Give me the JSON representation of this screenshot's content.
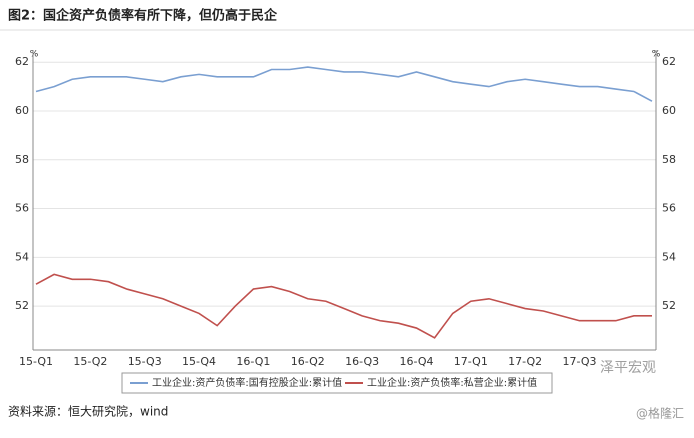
{
  "chart_data": {
    "type": "line",
    "title": "图2：国企资产负债率有所下降，但仍高于民企",
    "y_unit": "%",
    "y2_unit": "%",
    "categories": [
      "15-Q1",
      null,
      null,
      "15-Q2",
      null,
      null,
      "15-Q3",
      null,
      null,
      "15-Q4",
      null,
      null,
      "16-Q1",
      null,
      null,
      "16-Q2",
      null,
      null,
      "16-Q3",
      null,
      null,
      "16-Q4",
      null,
      null,
      "17-Q1",
      null,
      null,
      "17-Q2",
      null,
      null,
      "17-Q3",
      null,
      null,
      null,
      null
    ],
    "series": [
      {
        "name": "工业企业:资产负债率:国有控股企业:累计值",
        "color": "#7a9fd1",
        "values": [
          60.8,
          61.0,
          61.3,
          61.4,
          61.4,
          61.4,
          61.3,
          61.2,
          61.4,
          61.5,
          61.4,
          61.4,
          61.4,
          61.7,
          61.7,
          61.8,
          61.7,
          61.6,
          61.6,
          61.5,
          61.4,
          61.6,
          61.4,
          61.2,
          61.1,
          61.0,
          61.2,
          61.3,
          61.2,
          61.1,
          61.0,
          61.0,
          60.9,
          60.8,
          60.4
        ]
      },
      {
        "name": "工业企业:资产负债率:私营企业:累计值",
        "color": "#c0504d",
        "values": [
          52.9,
          53.3,
          53.1,
          53.1,
          53.0,
          52.7,
          52.5,
          52.3,
          52.0,
          51.7,
          51.2,
          52.0,
          52.7,
          52.8,
          52.6,
          52.3,
          52.2,
          51.9,
          51.6,
          51.4,
          51.3,
          51.1,
          50.7,
          51.7,
          52.2,
          52.3,
          52.1,
          51.9,
          51.8,
          51.6,
          51.4,
          51.4,
          51.4,
          51.6,
          51.6
        ]
      }
    ],
    "ylim": [
      50.2,
      62.5
    ],
    "yticks": [
      52,
      54,
      56,
      58,
      60,
      62
    ],
    "y2lim": [
      50.2,
      62.5
    ],
    "y2ticks": [
      52,
      54,
      56,
      58,
      60,
      62
    ],
    "grid": true,
    "source": "资料来源：恒大研究院，wind",
    "watermarks": [
      "泽平宏观",
      "@格隆汇"
    ]
  }
}
